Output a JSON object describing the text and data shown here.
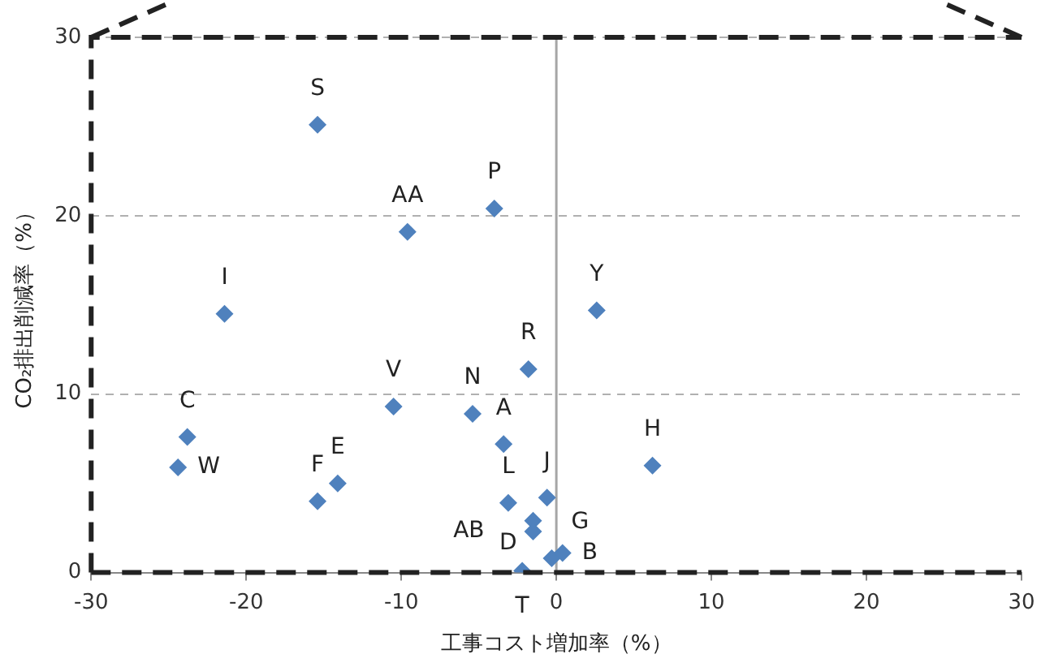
{
  "chart_data": {
    "type": "scatter",
    "xlabel": "工事コスト増加率（%）",
    "ylabel": "CO₂排出削減率（%）",
    "series": [
      {
        "color": "#4f81bd",
        "x": [
          -15.4,
          -9.6,
          -4.0,
          -21.4,
          2.6,
          -1.8,
          -10.5,
          -5.4,
          -3.4,
          -23.8,
          -24.4,
          -14.1,
          -15.4,
          6.2,
          -0.6,
          -3.1,
          -1.5,
          -1.5,
          -0.3,
          0.4,
          -2.2
        ],
        "values": [
          25.1,
          19.1,
          20.4,
          14.5,
          14.7,
          11.4,
          9.3,
          8.9,
          7.2,
          7.6,
          5.9,
          5.0,
          4.0,
          6.0,
          4.2,
          3.9,
          2.9,
          2.3,
          0.8,
          1.1,
          0.1
        ]
      }
    ],
    "marker": "diamond",
    "xlim": [
      -30,
      30
    ],
    "ylim": [
      0,
      30
    ],
    "xticks": [
      -30,
      -20,
      -10,
      0,
      10,
      20,
      30
    ],
    "yticks": [
      0,
      10,
      20,
      30
    ],
    "grid": "y",
    "ref_lines": [
      {
        "axis": "x",
        "value": 0,
        "color": "#a6a6a6"
      }
    ],
    "annotations": [
      {
        "text": "S",
        "x": -15.4,
        "y": 25.1
      },
      {
        "text": "AA",
        "x": -9.6,
        "y": 19.1
      },
      {
        "text": "P",
        "x": -4.0,
        "y": 20.4
      },
      {
        "text": "I",
        "x": -21.4,
        "y": 14.5
      },
      {
        "text": "Y",
        "x": 2.6,
        "y": 14.7
      },
      {
        "text": "R",
        "x": -1.8,
        "y": 11.4
      },
      {
        "text": "V",
        "x": -10.5,
        "y": 9.3
      },
      {
        "text": "N",
        "x": -5.4,
        "y": 8.9
      },
      {
        "text": "A",
        "x": -3.4,
        "y": 7.2
      },
      {
        "text": "C",
        "x": -23.8,
        "y": 7.6
      },
      {
        "text": "W",
        "x": -24.4,
        "y": 5.9
      },
      {
        "text": "E",
        "x": -14.1,
        "y": 5.0
      },
      {
        "text": "F",
        "x": -15.4,
        "y": 4.0
      },
      {
        "text": "H",
        "x": 6.2,
        "y": 6.0
      },
      {
        "text": "J",
        "x": -0.6,
        "y": 4.2
      },
      {
        "text": "L",
        "x": -3.1,
        "y": 3.9
      },
      {
        "text": "D",
        "x": -1.5,
        "y": 2.9
      },
      {
        "text": "AB",
        "x": -1.5,
        "y": 2.3
      },
      {
        "text": "G",
        "x": -0.3,
        "y": 0.8
      },
      {
        "text": "T",
        "x": -2.2,
        "y": 0.1
      },
      {
        "text": "B",
        "x": 0.4,
        "y": 1.1
      }
    ]
  }
}
